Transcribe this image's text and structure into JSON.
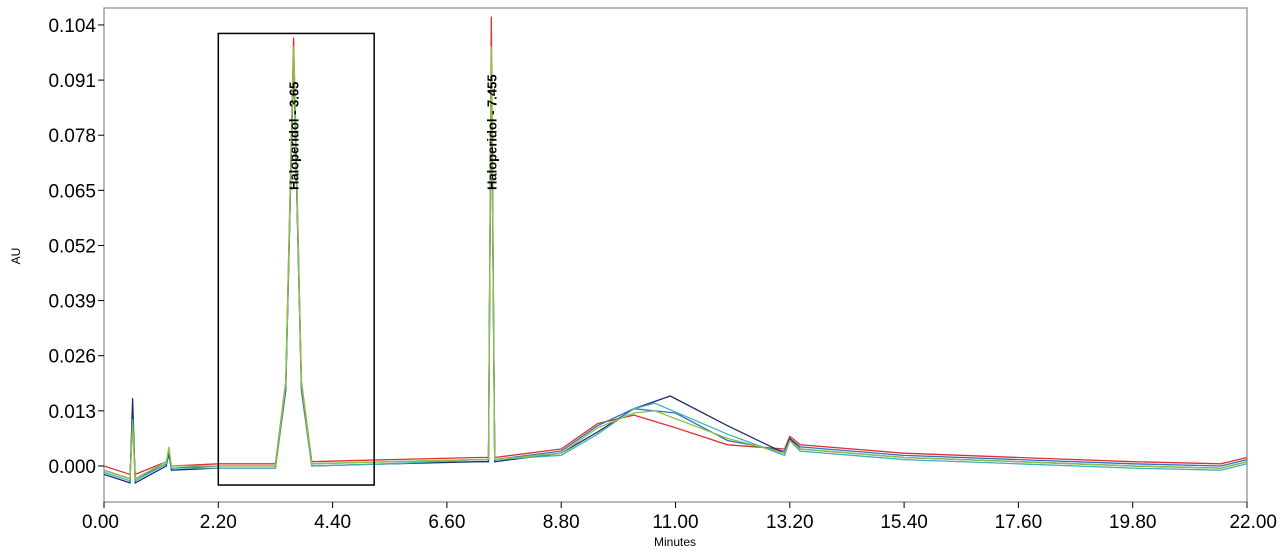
{
  "chart_data": {
    "type": "line",
    "title": "",
    "xlabel": "Minutes",
    "ylabel": "AU",
    "xlim": [
      0,
      22
    ],
    "ylim": [
      -0.0085,
      0.108
    ],
    "x_ticks": [
      "0.00",
      "2.20",
      "4.40",
      "6.60",
      "8.80",
      "11.00",
      "13.20",
      "15.40",
      "17.60",
      "19.80",
      "22.00"
    ],
    "y_ticks": [
      "0.000",
      "0.013",
      "0.026",
      "0.039",
      "0.052",
      "0.065",
      "0.078",
      "0.091",
      "0.104"
    ],
    "grid": false,
    "legend": "none",
    "highlight_box": {
      "x_range": [
        2.2,
        5.2
      ],
      "y_range": [
        -0.0045,
        0.102
      ]
    },
    "series": [
      {
        "color": "#e03030",
        "values": [
          [
            0.0,
            0.0
          ],
          [
            0.5,
            -0.002
          ],
          [
            0.55,
            0.01
          ],
          [
            0.6,
            -0.002
          ],
          [
            1.2,
            0.001
          ],
          [
            1.25,
            0.003
          ],
          [
            1.3,
            0.0
          ],
          [
            2.2,
            0.0005
          ],
          [
            3.3,
            0.0005
          ],
          [
            3.5,
            0.02
          ],
          [
            3.65,
            0.101
          ],
          [
            3.8,
            0.02
          ],
          [
            4.0,
            0.001
          ],
          [
            5.5,
            0.0015
          ],
          [
            7.2,
            0.002
          ],
          [
            7.4,
            0.002
          ],
          [
            7.455,
            0.106
          ],
          [
            7.52,
            0.002
          ],
          [
            8.8,
            0.004
          ],
          [
            9.5,
            0.01
          ],
          [
            10.2,
            0.012
          ],
          [
            11.0,
            0.009
          ],
          [
            12.0,
            0.005
          ],
          [
            13.1,
            0.004
          ],
          [
            13.2,
            0.007
          ],
          [
            13.4,
            0.005
          ],
          [
            15.4,
            0.003
          ],
          [
            17.6,
            0.002
          ],
          [
            19.8,
            0.001
          ],
          [
            21.5,
            0.0005
          ],
          [
            22.0,
            0.002
          ]
        ]
      },
      {
        "color": "#3070c8",
        "values": [
          [
            0.0,
            -0.001
          ],
          [
            0.5,
            -0.003
          ],
          [
            0.55,
            0.012
          ],
          [
            0.6,
            -0.003
          ],
          [
            1.2,
            0.0005
          ],
          [
            1.25,
            0.0025
          ],
          [
            1.3,
            -0.0005
          ],
          [
            2.2,
            0.0
          ],
          [
            3.3,
            0.0
          ],
          [
            3.5,
            0.019
          ],
          [
            3.65,
            0.097
          ],
          [
            3.8,
            0.019
          ],
          [
            4.0,
            0.0005
          ],
          [
            5.5,
            0.001
          ],
          [
            7.2,
            0.0015
          ],
          [
            7.4,
            0.0015
          ],
          [
            7.455,
            0.097
          ],
          [
            7.52,
            0.0015
          ],
          [
            8.8,
            0.0035
          ],
          [
            9.5,
            0.0095
          ],
          [
            10.2,
            0.0135
          ],
          [
            11.0,
            0.0125
          ],
          [
            12.0,
            0.006
          ],
          [
            13.1,
            0.0035
          ],
          [
            13.2,
            0.0065
          ],
          [
            13.4,
            0.0045
          ],
          [
            15.4,
            0.0025
          ],
          [
            17.6,
            0.0015
          ],
          [
            19.8,
            0.0005
          ],
          [
            21.5,
            0.0
          ],
          [
            22.0,
            0.0015
          ]
        ]
      },
      {
        "color": "#1a2e6e",
        "values": [
          [
            0.0,
            -0.002
          ],
          [
            0.5,
            -0.004
          ],
          [
            0.55,
            0.016
          ],
          [
            0.6,
            -0.004
          ],
          [
            1.2,
            0.0
          ],
          [
            1.25,
            0.0035
          ],
          [
            1.3,
            -0.001
          ],
          [
            2.2,
            -0.0005
          ],
          [
            3.3,
            -0.0005
          ],
          [
            3.5,
            0.018
          ],
          [
            3.65,
            0.096
          ],
          [
            3.8,
            0.018
          ],
          [
            4.0,
            0.0
          ],
          [
            5.5,
            0.0005
          ],
          [
            7.2,
            0.001
          ],
          [
            7.4,
            0.001
          ],
          [
            7.455,
            0.096
          ],
          [
            7.52,
            0.001
          ],
          [
            8.8,
            0.003
          ],
          [
            9.5,
            0.008
          ],
          [
            10.2,
            0.0135
          ],
          [
            10.9,
            0.0165
          ],
          [
            12.0,
            0.0095
          ],
          [
            13.1,
            0.003
          ],
          [
            13.2,
            0.0065
          ],
          [
            13.4,
            0.004
          ],
          [
            15.4,
            0.002
          ],
          [
            17.6,
            0.001
          ],
          [
            19.8,
            0.0
          ],
          [
            21.5,
            -0.0005
          ],
          [
            22.0,
            0.001
          ]
        ]
      },
      {
        "color": "#40b0b8",
        "values": [
          [
            0.0,
            -0.0015
          ],
          [
            0.5,
            -0.0035
          ],
          [
            0.55,
            0.011
          ],
          [
            0.6,
            -0.0035
          ],
          [
            1.2,
            0.0005
          ],
          [
            1.25,
            0.004
          ],
          [
            1.3,
            -0.0005
          ],
          [
            2.2,
            -0.0005
          ],
          [
            3.3,
            -0.0005
          ],
          [
            3.5,
            0.019
          ],
          [
            3.65,
            0.098
          ],
          [
            3.8,
            0.019
          ],
          [
            4.0,
            0.0
          ],
          [
            5.5,
            0.0005
          ],
          [
            7.2,
            0.0015
          ],
          [
            7.4,
            0.0015
          ],
          [
            7.455,
            0.098
          ],
          [
            7.52,
            0.0015
          ],
          [
            8.8,
            0.0025
          ],
          [
            9.5,
            0.0075
          ],
          [
            10.2,
            0.0135
          ],
          [
            10.6,
            0.0148
          ],
          [
            12.0,
            0.0075
          ],
          [
            13.1,
            0.0025
          ],
          [
            13.2,
            0.006
          ],
          [
            13.4,
            0.0035
          ],
          [
            15.4,
            0.0015
          ],
          [
            17.6,
            0.0005
          ],
          [
            19.8,
            -0.0005
          ],
          [
            21.5,
            -0.001
          ],
          [
            22.0,
            0.0005
          ]
        ]
      },
      {
        "color": "#90c040",
        "values": [
          [
            0.0,
            -0.001
          ],
          [
            0.5,
            -0.003
          ],
          [
            0.55,
            0.01
          ],
          [
            0.6,
            -0.003
          ],
          [
            1.2,
            0.001
          ],
          [
            1.25,
            0.0045
          ],
          [
            1.3,
            0.0
          ],
          [
            2.2,
            0.0
          ],
          [
            3.3,
            0.0
          ],
          [
            3.5,
            0.02
          ],
          [
            3.65,
            0.099
          ],
          [
            3.8,
            0.02
          ],
          [
            4.0,
            0.0005
          ],
          [
            5.5,
            0.001
          ],
          [
            7.2,
            0.0015
          ],
          [
            7.4,
            0.0015
          ],
          [
            7.455,
            0.099
          ],
          [
            7.52,
            0.0015
          ],
          [
            8.8,
            0.003
          ],
          [
            9.5,
            0.009
          ],
          [
            10.2,
            0.0125
          ],
          [
            10.6,
            0.013
          ],
          [
            12.0,
            0.0065
          ],
          [
            13.1,
            0.003
          ],
          [
            13.2,
            0.006
          ],
          [
            13.4,
            0.004
          ],
          [
            15.4,
            0.002
          ],
          [
            17.6,
            0.001
          ],
          [
            19.8,
            0.0
          ],
          [
            21.5,
            -0.0005
          ],
          [
            22.0,
            0.001
          ]
        ]
      }
    ],
    "peak_labels": [
      {
        "text": "Haloperidol - 3.65",
        "x": 3.65
      },
      {
        "text": "Haloperidol - 7.455",
        "x": 7.455
      }
    ]
  }
}
